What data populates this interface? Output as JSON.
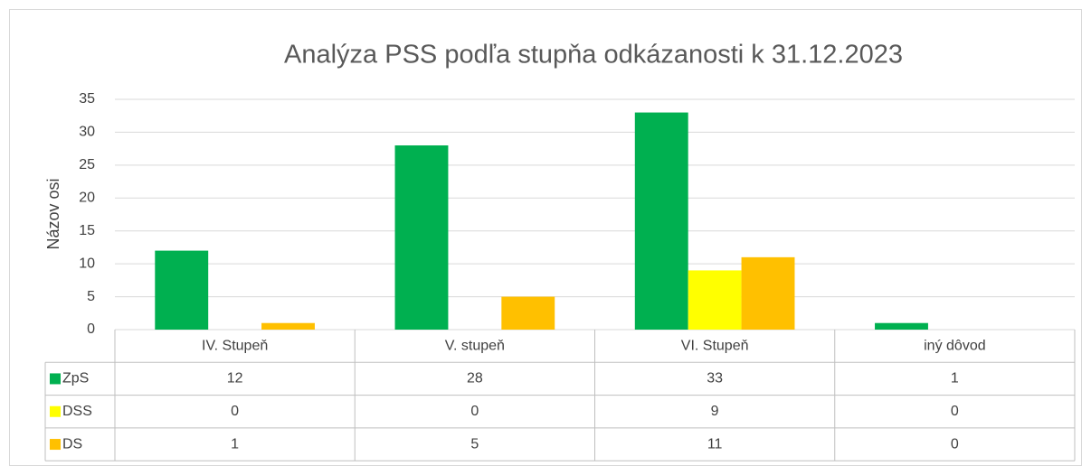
{
  "chart_data": {
    "type": "bar",
    "title": "Analýza PSS podľa stupňa odkázanosti k 31.12.2023",
    "y_label": "Názov osi",
    "categories": [
      "IV. Stupeň",
      "V. stupeň",
      "VI. Stupeň",
      "iný dôvod"
    ],
    "series": [
      {
        "name": "ZpS",
        "color": "#00b050",
        "values": [
          12,
          28,
          33,
          1
        ]
      },
      {
        "name": "DSS",
        "color": "#ffff00",
        "values": [
          0,
          0,
          9,
          0
        ]
      },
      {
        "name": "DS",
        "color": "#ffc000",
        "values": [
          1,
          5,
          11,
          0
        ]
      }
    ],
    "ylim": [
      0,
      35
    ],
    "yticks": [
      0,
      5,
      10,
      15,
      20,
      25,
      30,
      35
    ],
    "grid": true,
    "data_table": true
  }
}
